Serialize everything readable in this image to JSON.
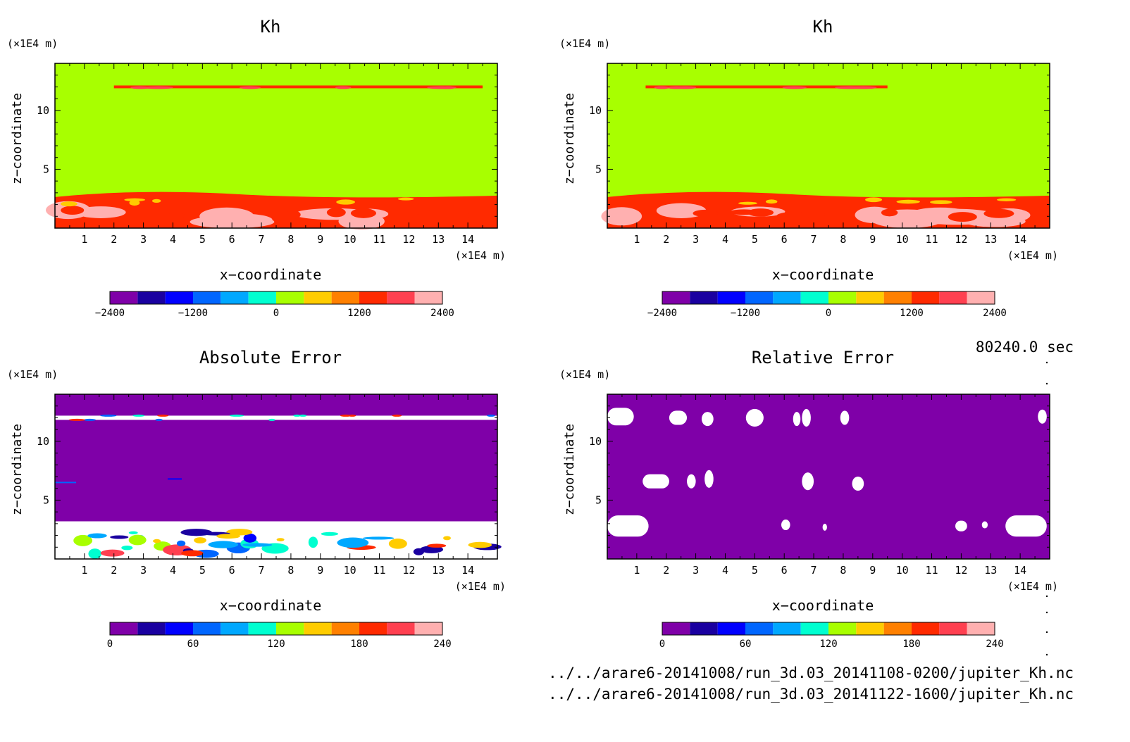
{
  "timestamp": "80240.0 sec",
  "files": [
    "../../arare6-20141008/run_3d.03_20141108-0200/jupiter_Kh.nc",
    "../../arare6-20141008/run_3d.03_20141122-1600/jupiter_Kh.nc"
  ],
  "colors": {
    "levels": [
      "#7f00a8",
      "#1a00a0",
      "#0000ff",
      "#0066ff",
      "#00a8ff",
      "#00ffd0",
      "#a8ff00",
      "#ffcc00",
      "#ff8000",
      "#ff2a00",
      "#ff4050",
      "#ffb0b0"
    ],
    "background_field": "#a8ff00",
    "error_field": "#7f00a8"
  },
  "chart_data": [
    {
      "type": "heatmap",
      "title": "Kh",
      "xlabel": "x−coordinate",
      "ylabel": "z−coordinate",
      "x_unit": "(×1E4 m)",
      "y_unit": "(×1E4 m)",
      "xlim": [
        0,
        15
      ],
      "ylim": [
        0,
        14
      ],
      "x_ticks": [
        "1",
        "2",
        "3",
        "4",
        "5",
        "6",
        "7",
        "8",
        "9",
        "10",
        "11",
        "12",
        "13",
        "14"
      ],
      "y_ticks": [
        "5",
        "10"
      ],
      "colorbar": {
        "min": -2400,
        "max": 2400,
        "levels": 12,
        "tick_labels": [
          "−2400",
          "−1200",
          "0",
          "1200",
          "2400"
        ]
      },
      "field_value": 0,
      "features": [
        {
          "feature": "thin layer",
          "z": 12,
          "x_range": [
            2,
            14.5
          ],
          "value_range": [
            1200,
            2400
          ]
        },
        {
          "feature": "lower boundary layer",
          "z_range": [
            0,
            3
          ],
          "x_range": [
            0,
            15
          ],
          "value_range": [
            800,
            2400
          ]
        }
      ]
    },
    {
      "type": "heatmap",
      "title": "Kh",
      "xlabel": "x−coordinate",
      "ylabel": "z−coordinate",
      "x_unit": "(×1E4 m)",
      "y_unit": "(×1E4 m)",
      "xlim": [
        0,
        15
      ],
      "ylim": [
        0,
        14
      ],
      "x_ticks": [
        "1",
        "2",
        "3",
        "4",
        "5",
        "6",
        "7",
        "8",
        "9",
        "10",
        "11",
        "12",
        "13",
        "14"
      ],
      "y_ticks": [
        "5",
        "10"
      ],
      "colorbar": {
        "min": -2400,
        "max": 2400,
        "levels": 12,
        "tick_labels": [
          "−2400",
          "−1200",
          "0",
          "1200",
          "2400"
        ]
      },
      "field_value": 0,
      "features": [
        {
          "feature": "thin layer",
          "z": 12,
          "x_range": [
            1.3,
            9.5
          ],
          "value_range": [
            1200,
            2400
          ]
        },
        {
          "feature": "lower boundary layer",
          "z_range": [
            0,
            3
          ],
          "x_range": [
            0,
            15
          ],
          "value_range": [
            800,
            2400
          ]
        }
      ]
    },
    {
      "type": "heatmap",
      "title": "Absolute Error",
      "xlabel": "x−coordinate",
      "ylabel": "z−coordinate",
      "x_unit": "(×1E4 m)",
      "y_unit": "(×1E4 m)",
      "xlim": [
        0,
        15
      ],
      "ylim": [
        0,
        14
      ],
      "x_ticks": [
        "1",
        "2",
        "3",
        "4",
        "5",
        "6",
        "7",
        "8",
        "9",
        "10",
        "11",
        "12",
        "13",
        "14"
      ],
      "y_ticks": [
        "5",
        "10"
      ],
      "colorbar": {
        "min": 0,
        "max": 240,
        "levels": 12,
        "tick_labels": [
          "0",
          "60",
          "120",
          "180",
          "240"
        ]
      },
      "field_value": 0,
      "features": [
        {
          "feature": "error band",
          "z": 12,
          "x_range": [
            0,
            15
          ],
          "value": "> 240"
        },
        {
          "feature": "lower boundary layer errors",
          "z_range": [
            0,
            3
          ],
          "x_range": [
            0,
            15
          ],
          "value_range": [
            0,
            240
          ]
        }
      ]
    },
    {
      "type": "heatmap",
      "title": "Relative Error",
      "xlabel": "x−coordinate",
      "ylabel": "z−coordinate",
      "x_unit": "(×1E4 m)",
      "y_unit": "(×1E4 m)",
      "xlim": [
        0,
        15
      ],
      "ylim": [
        0,
        14
      ],
      "x_ticks": [
        "1",
        "2",
        "3",
        "4",
        "5",
        "6",
        "7",
        "8",
        "9",
        "10",
        "11",
        "12",
        "13",
        "14"
      ],
      "y_ticks": [
        "5",
        "10"
      ],
      "colorbar": {
        "min": 0,
        "max": 240,
        "levels": 12,
        "tick_labels": [
          "0",
          "60",
          "120",
          "180",
          "240"
        ]
      },
      "field_value": 0,
      "features": [
        {
          "feature": "scattered patches",
          "z_levels": [
            12,
            6.5,
            2.8
          ],
          "value": "> 240"
        }
      ]
    }
  ]
}
